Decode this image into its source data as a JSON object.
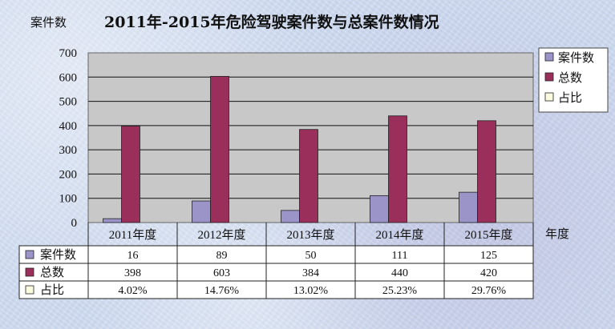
{
  "title": "2011年-2015年危险驾驶案件数与总案件数情况",
  "chart_data": {
    "type": "bar",
    "title": "2011年-2015年危险驾驶案件数与总案件数情况",
    "ylabel": "案件数",
    "xlabel": "年度",
    "ylim": [
      0,
      700
    ],
    "yticks": [
      0,
      100,
      200,
      300,
      400,
      500,
      600,
      700
    ],
    "categories": [
      "2011年度",
      "2012年度",
      "2013年度",
      "2014年度",
      "2015年度"
    ],
    "series": [
      {
        "name": "案件数",
        "color": "#9a94c8",
        "values": [
          16,
          89,
          50,
          111,
          125
        ]
      },
      {
        "name": "总数",
        "color": "#9a2f5c",
        "values": [
          398,
          603,
          384,
          440,
          420
        ]
      },
      {
        "name": "占比",
        "color": "#fbfbe0",
        "values": [
          "4.02%",
          "14.76%",
          "13.02%",
          "25.23%",
          "29.76%"
        ]
      }
    ],
    "grid": true,
    "legend": "right",
    "data_table": true
  }
}
